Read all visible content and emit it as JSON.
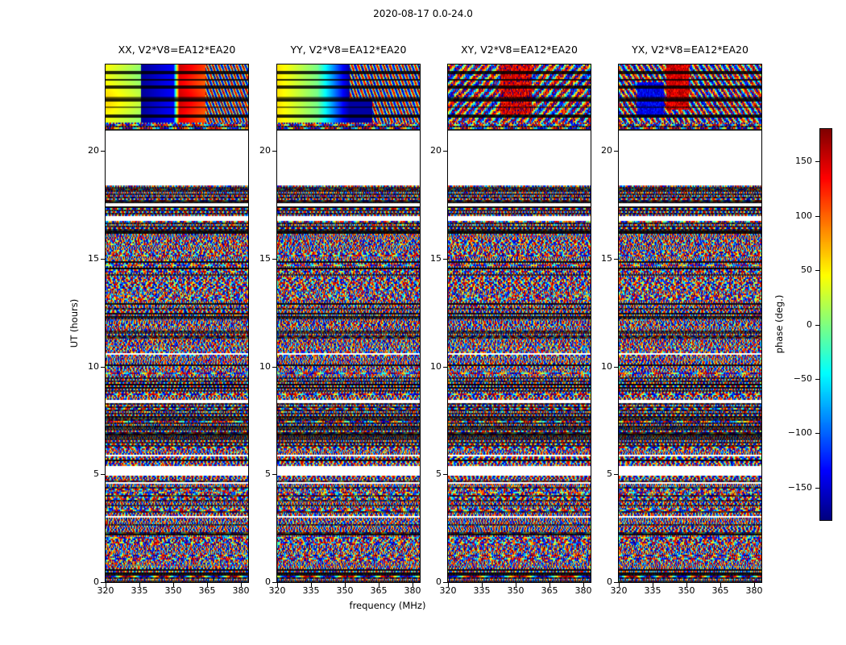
{
  "chart_data": {
    "type": "heatmap",
    "title": "2020-08-17 0.0-24.0",
    "panels": [
      {
        "title": "XX, V2*V8=EA12*EA20",
        "polarization": "XX",
        "baseline": "V2*V8=EA12*EA20"
      },
      {
        "title": "YY, V2*V8=EA12*EA20",
        "polarization": "YY",
        "baseline": "V2*V8=EA12*EA20"
      },
      {
        "title": "XY, V2*V8=EA12*EA20",
        "polarization": "XY",
        "baseline": "V2*V8=EA12*EA20"
      },
      {
        "title": "YX, V2*V8=EA12*EA20",
        "polarization": "YX",
        "baseline": "V2*V8=EA12*EA20"
      }
    ],
    "x_axis": {
      "label": "frequency (MHz)",
      "range": [
        320,
        383
      ],
      "ticks": [
        320,
        335,
        350,
        365,
        380
      ]
    },
    "y_axis": {
      "label": "UT (hours)",
      "range": [
        0,
        24
      ],
      "ticks": [
        0,
        5,
        10,
        15,
        20
      ]
    },
    "colorbar": {
      "label": "phase (deg.)",
      "range": [
        -180,
        180
      ],
      "ticks": [
        150,
        100,
        50,
        0,
        -50,
        -100,
        -150
      ],
      "colormap": "jet"
    },
    "data_description": "Interferometric visibility phase versus frequency (320-383 MHz) and time (UT 0-24 h) for four polarization products of baseline V2*V8=EA12*EA20; body of each panel is noise-like wrapped-phase fringes, with a coherent smooth-phase block at the top (UT ~21.3-24) in XX/YY, blank (flagged) time ranges, and darker striped time bands.",
    "features": {
      "blank_time_bands": [
        [
          18.38,
          20.93
        ],
        [
          17.42,
          17.56
        ],
        [
          16.78,
          17.0
        ],
        [
          10.52,
          10.62
        ],
        [
          8.3,
          8.44
        ],
        [
          4.97,
          5.4
        ],
        [
          4.55,
          4.65
        ],
        [
          2.98,
          3.07
        ]
      ],
      "striped_time_bands": [
        [
          0.0,
          0.45
        ],
        [
          6.2,
          8.35
        ],
        [
          9.05,
          9.5
        ],
        [
          12.25,
          12.55
        ],
        [
          14.4,
          14.55
        ],
        [
          16.2,
          18.35
        ]
      ],
      "smooth_block_time_range": [
        21.3,
        24.0
      ]
    }
  }
}
